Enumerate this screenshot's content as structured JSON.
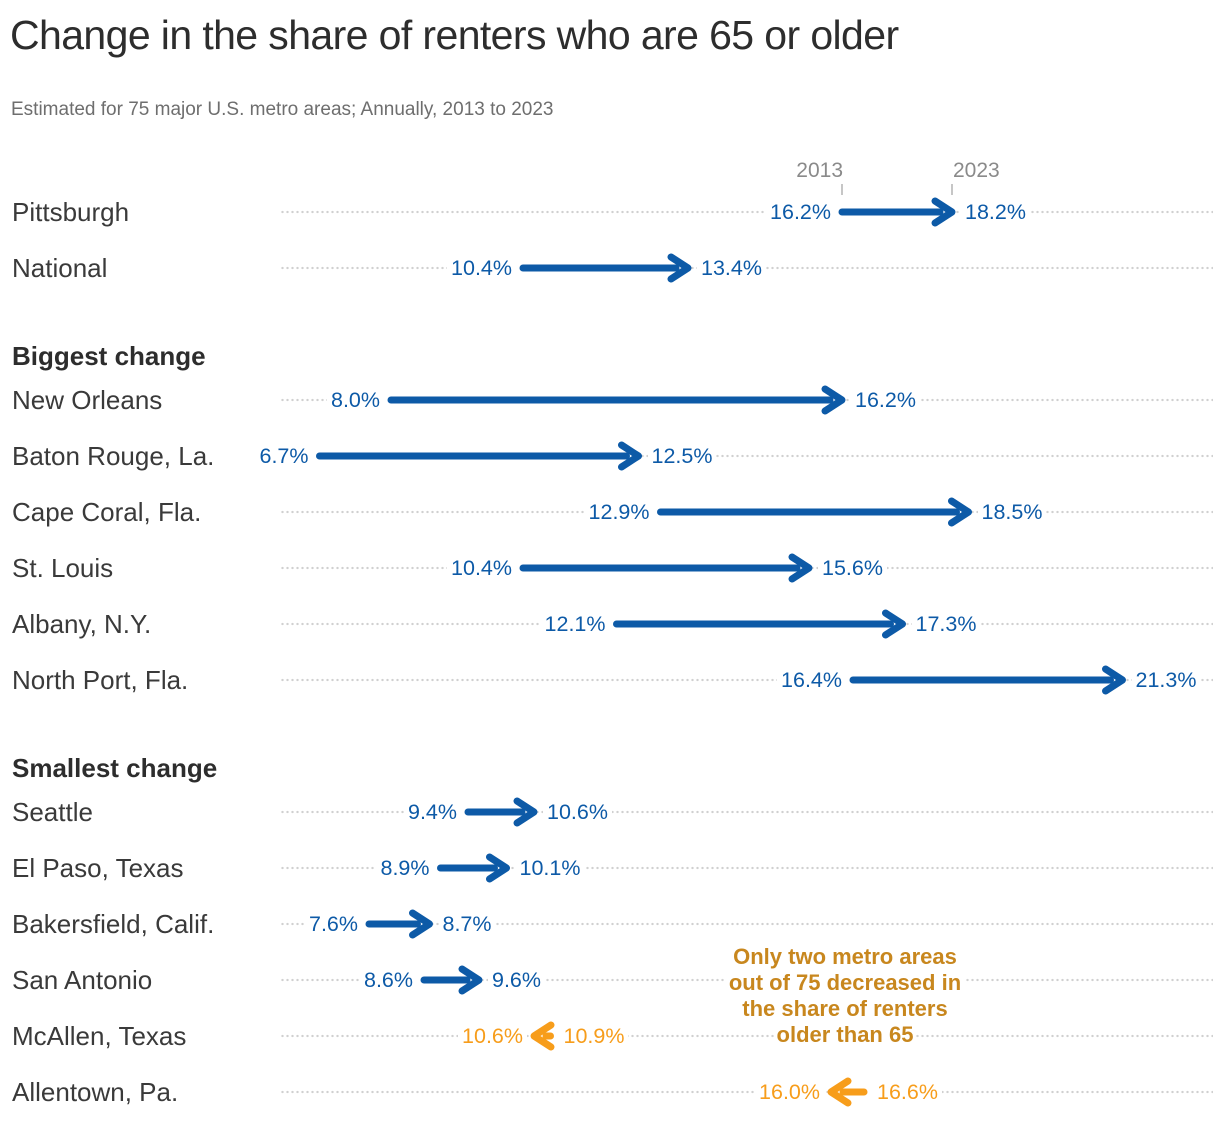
{
  "title": "Change in the share of renters who are 65 or older",
  "subtitle": "Estimated for 75 major U.S. metro areas; Annually, 2013 to 2023",
  "axis": {
    "start_label": "2013",
    "end_label": "2023"
  },
  "annotation": {
    "lines": [
      "Only two metro areas",
      "out of 75 decreased in",
      "the share of renters",
      "older than 65"
    ],
    "color": "#C8871E"
  },
  "chart_data": {
    "type": "arrow",
    "title": "Change in the share of renters who are 65 or older",
    "subtitle": "Estimated for 75 major U.S. metro areas; Annually, 2013 to 2023",
    "unit": "% share of renters 65 or older",
    "period": {
      "start": "2013",
      "end": "2023"
    },
    "colors": {
      "increase": "#0D5AA7",
      "decrease": "#F79D1B"
    },
    "groups": [
      {
        "header": "",
        "rows": [
          {
            "label": "Pittsburgh",
            "start": "16.2%",
            "end": "18.2%"
          },
          {
            "label": "National",
            "start": "10.4%",
            "end": "13.4%"
          }
        ]
      },
      {
        "header": "Biggest change",
        "rows": [
          {
            "label": "New Orleans",
            "start": "8.0%",
            "end": "16.2%"
          },
          {
            "label": "Baton Rouge, La.",
            "start": "6.7%",
            "end": "12.5%"
          },
          {
            "label": "Cape Coral, Fla.",
            "start": "12.9%",
            "end": "18.5%"
          },
          {
            "label": "St. Louis",
            "start": "10.4%",
            "end": "15.6%"
          },
          {
            "label": "Albany, N.Y.",
            "start": "12.1%",
            "end": "17.3%"
          },
          {
            "label": "North Port, Fla.",
            "start": "16.4%",
            "end": "21.3%"
          }
        ]
      },
      {
        "header": "Smallest change",
        "rows": [
          {
            "label": "Seattle",
            "start": "9.4%",
            "end": "10.6%"
          },
          {
            "label": "El Paso, Texas",
            "start": "8.9%",
            "end": "10.1%"
          },
          {
            "label": "Bakersfield, Calif.",
            "start": "7.6%",
            "end": "8.7%"
          },
          {
            "label": "San Antonio",
            "start": "8.6%",
            "end": "9.6%"
          },
          {
            "label": "McAllen, Texas",
            "start": "10.9%",
            "end": "10.6%"
          },
          {
            "label": "Allentown, Pa.",
            "start": "16.6%",
            "end": "16.0%"
          }
        ]
      }
    ]
  }
}
